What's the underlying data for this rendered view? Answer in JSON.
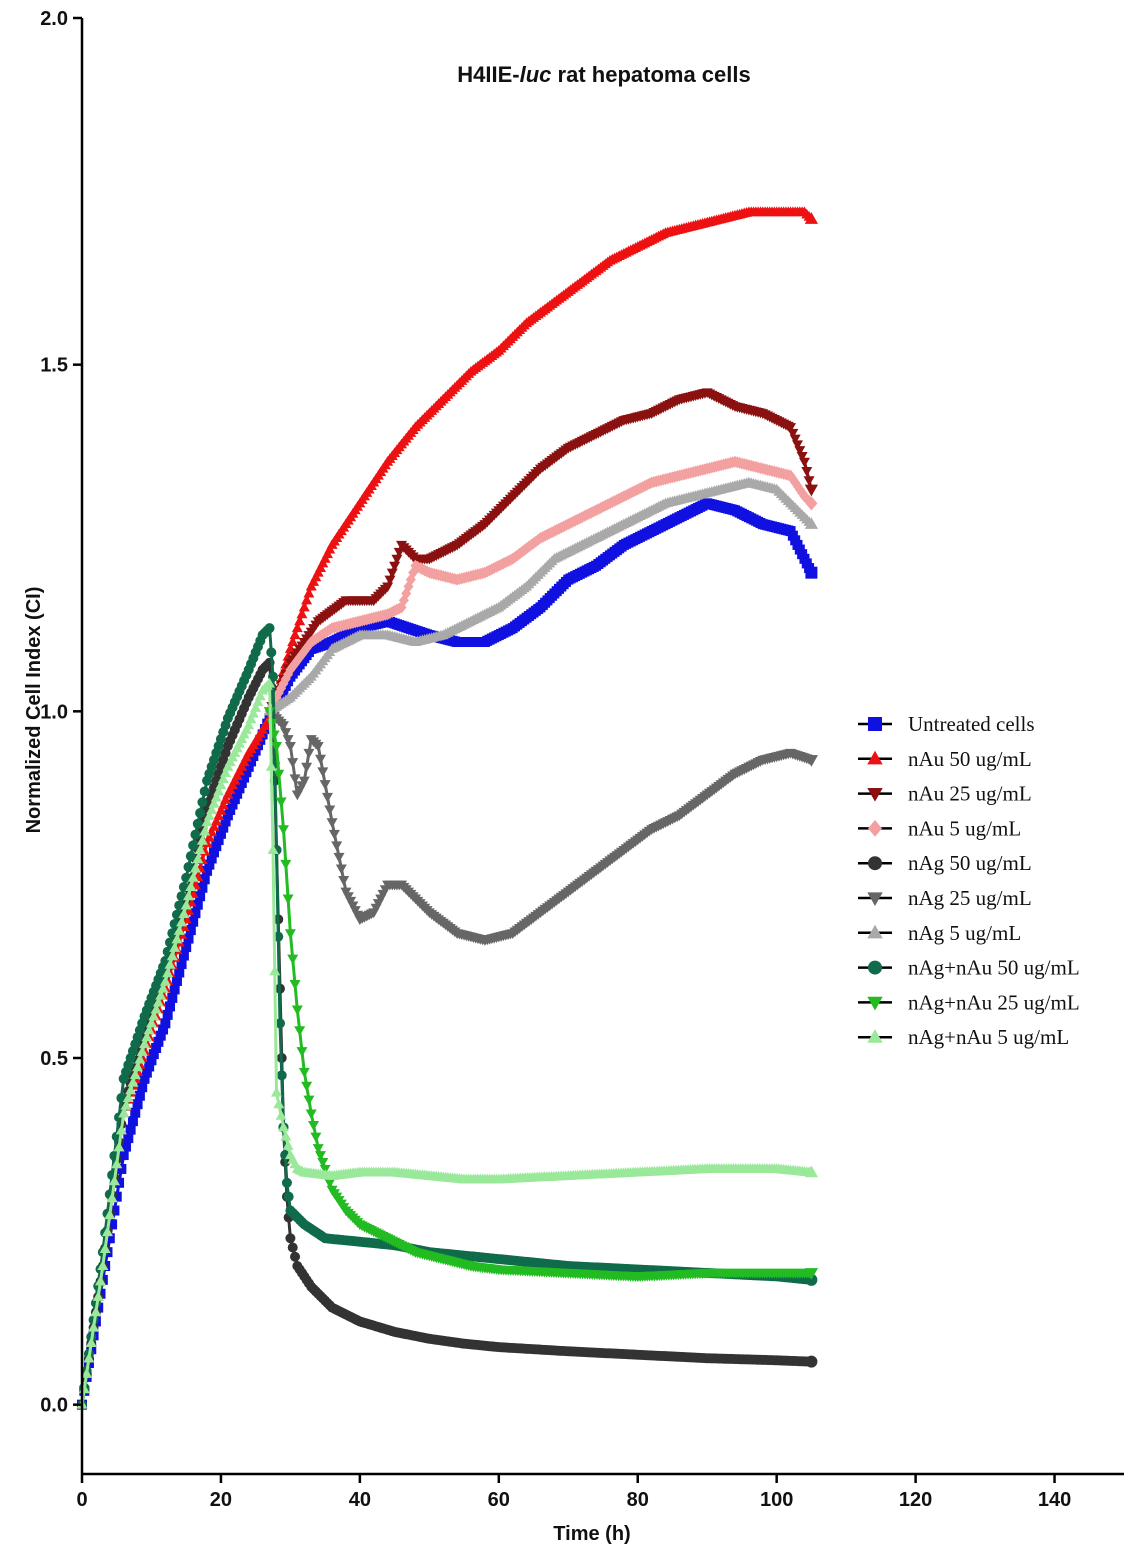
{
  "chart_data": {
    "type": "line",
    "title_main": "H4IIE-",
    "title_italic": "luc",
    "title_rest": " rat hepatoma cells",
    "xlabel": "Time (h)",
    "ylabel": "Normalized Cell Index (CI)",
    "xlim": [
      0,
      150
    ],
    "ylim": [
      -0.1,
      2.0
    ],
    "xticks": [
      "0",
      "20",
      "40",
      "60",
      "80",
      "100",
      "120",
      "140"
    ],
    "yticks": [
      "0.0",
      "0.5",
      "1.0",
      "1.5",
      "2.0"
    ],
    "legend_position": "right",
    "series": [
      {
        "name": "Untreated cells",
        "color": "#1010e0",
        "marker": "square",
        "points": [
          [
            0,
            0
          ],
          [
            3,
            0.18
          ],
          [
            6,
            0.36
          ],
          [
            9,
            0.47
          ],
          [
            12,
            0.55
          ],
          [
            15,
            0.66
          ],
          [
            18,
            0.77
          ],
          [
            21,
            0.85
          ],
          [
            24,
            0.92
          ],
          [
            27,
            0.99
          ],
          [
            30,
            1.05
          ],
          [
            33,
            1.09
          ],
          [
            36,
            1.1
          ],
          [
            40,
            1.12
          ],
          [
            44,
            1.13
          ],
          [
            47,
            1.12
          ],
          [
            50,
            1.11
          ],
          [
            54,
            1.1
          ],
          [
            58,
            1.1
          ],
          [
            62,
            1.12
          ],
          [
            66,
            1.15
          ],
          [
            70,
            1.19
          ],
          [
            74,
            1.21
          ],
          [
            78,
            1.24
          ],
          [
            82,
            1.26
          ],
          [
            86,
            1.28
          ],
          [
            90,
            1.3
          ],
          [
            94,
            1.29
          ],
          [
            98,
            1.27
          ],
          [
            102,
            1.26
          ],
          [
            104,
            1.22
          ],
          [
            105,
            1.2
          ]
        ]
      },
      {
        "name": "nAu 50 ug/mL",
        "color": "#ee1111",
        "marker": "triangle-up",
        "points": [
          [
            0,
            0
          ],
          [
            3,
            0.2
          ],
          [
            6,
            0.42
          ],
          [
            9,
            0.51
          ],
          [
            12,
            0.6
          ],
          [
            15,
            0.7
          ],
          [
            18,
            0.81
          ],
          [
            21,
            0.88
          ],
          [
            24,
            0.94
          ],
          [
            27,
            0.99
          ],
          [
            30,
            1.09
          ],
          [
            33,
            1.18
          ],
          [
            36,
            1.24
          ],
          [
            40,
            1.3
          ],
          [
            44,
            1.36
          ],
          [
            48,
            1.41
          ],
          [
            52,
            1.45
          ],
          [
            56,
            1.49
          ],
          [
            60,
            1.52
          ],
          [
            64,
            1.56
          ],
          [
            68,
            1.59
          ],
          [
            72,
            1.62
          ],
          [
            76,
            1.65
          ],
          [
            80,
            1.67
          ],
          [
            84,
            1.69
          ],
          [
            88,
            1.7
          ],
          [
            92,
            1.71
          ],
          [
            96,
            1.72
          ],
          [
            100,
            1.72
          ],
          [
            104,
            1.72
          ],
          [
            105,
            1.71
          ]
        ]
      },
      {
        "name": "nAu 25 ug/mL",
        "color": "#8b1010",
        "marker": "triangle-down",
        "points": [
          [
            27,
            1.0
          ],
          [
            30,
            1.07
          ],
          [
            34,
            1.13
          ],
          [
            38,
            1.16
          ],
          [
            42,
            1.16
          ],
          [
            44,
            1.18
          ],
          [
            46,
            1.24
          ],
          [
            48,
            1.22
          ],
          [
            50,
            1.22
          ],
          [
            54,
            1.24
          ],
          [
            58,
            1.27
          ],
          [
            62,
            1.31
          ],
          [
            66,
            1.35
          ],
          [
            70,
            1.38
          ],
          [
            74,
            1.4
          ],
          [
            78,
            1.42
          ],
          [
            82,
            1.43
          ],
          [
            86,
            1.45
          ],
          [
            90,
            1.46
          ],
          [
            94,
            1.44
          ],
          [
            98,
            1.43
          ],
          [
            102,
            1.41
          ],
          [
            104,
            1.36
          ],
          [
            105,
            1.32
          ]
        ]
      },
      {
        "name": "nAu 5 ug/mL",
        "color": "#f2a0a0",
        "marker": "diamond",
        "points": [
          [
            27,
            1.0
          ],
          [
            30,
            1.06
          ],
          [
            33,
            1.1
          ],
          [
            36,
            1.12
          ],
          [
            40,
            1.13
          ],
          [
            44,
            1.14
          ],
          [
            46,
            1.15
          ],
          [
            48,
            1.21
          ],
          [
            50,
            1.2
          ],
          [
            54,
            1.19
          ],
          [
            58,
            1.2
          ],
          [
            62,
            1.22
          ],
          [
            66,
            1.25
          ],
          [
            70,
            1.27
          ],
          [
            74,
            1.29
          ],
          [
            78,
            1.31
          ],
          [
            82,
            1.33
          ],
          [
            86,
            1.34
          ],
          [
            90,
            1.35
          ],
          [
            94,
            1.36
          ],
          [
            98,
            1.35
          ],
          [
            102,
            1.34
          ],
          [
            104,
            1.31
          ],
          [
            105,
            1.3
          ]
        ]
      },
      {
        "name": "nAg 50 ug/mL",
        "color": "#333333",
        "marker": "circle",
        "points": [
          [
            0,
            0
          ],
          [
            3,
            0.2
          ],
          [
            6,
            0.43
          ],
          [
            9,
            0.53
          ],
          [
            12,
            0.62
          ],
          [
            15,
            0.73
          ],
          [
            18,
            0.86
          ],
          [
            21,
            0.95
          ],
          [
            24,
            1.02
          ],
          [
            26,
            1.06
          ],
          [
            27,
            1.07
          ],
          [
            27.5,
            1.0
          ],
          [
            28,
            0.8
          ],
          [
            28.5,
            0.6
          ],
          [
            29,
            0.4
          ],
          [
            29.5,
            0.3
          ],
          [
            30,
            0.24
          ],
          [
            31,
            0.2
          ],
          [
            33,
            0.17
          ],
          [
            36,
            0.14
          ],
          [
            40,
            0.12
          ],
          [
            45,
            0.105
          ],
          [
            50,
            0.095
          ],
          [
            55,
            0.088
          ],
          [
            60,
            0.083
          ],
          [
            70,
            0.077
          ],
          [
            80,
            0.072
          ],
          [
            90,
            0.067
          ],
          [
            100,
            0.064
          ],
          [
            105,
            0.062
          ]
        ]
      },
      {
        "name": "nAg 25 ug/mL",
        "color": "#666666",
        "marker": "triangle-down",
        "points": [
          [
            27,
            1.0
          ],
          [
            29,
            0.98
          ],
          [
            30,
            0.95
          ],
          [
            31,
            0.88
          ],
          [
            32,
            0.9
          ],
          [
            33,
            0.96
          ],
          [
            34,
            0.95
          ],
          [
            36,
            0.84
          ],
          [
            38,
            0.74
          ],
          [
            40,
            0.7
          ],
          [
            42,
            0.71
          ],
          [
            44,
            0.75
          ],
          [
            46,
            0.75
          ],
          [
            48,
            0.73
          ],
          [
            50,
            0.71
          ],
          [
            54,
            0.68
          ],
          [
            58,
            0.67
          ],
          [
            62,
            0.68
          ],
          [
            66,
            0.71
          ],
          [
            70,
            0.74
          ],
          [
            74,
            0.77
          ],
          [
            78,
            0.8
          ],
          [
            82,
            0.83
          ],
          [
            86,
            0.85
          ],
          [
            90,
            0.88
          ],
          [
            94,
            0.91
          ],
          [
            98,
            0.93
          ],
          [
            102,
            0.94
          ],
          [
            105,
            0.93
          ]
        ]
      },
      {
        "name": "nAg 5 ug/mL",
        "color": "#a9a9a9",
        "marker": "triangle-up",
        "points": [
          [
            27,
            1.0
          ],
          [
            30,
            1.02
          ],
          [
            33,
            1.05
          ],
          [
            36,
            1.09
          ],
          [
            40,
            1.11
          ],
          [
            44,
            1.11
          ],
          [
            48,
            1.1
          ],
          [
            52,
            1.11
          ],
          [
            56,
            1.13
          ],
          [
            60,
            1.15
          ],
          [
            64,
            1.18
          ],
          [
            68,
            1.22
          ],
          [
            72,
            1.24
          ],
          [
            76,
            1.26
          ],
          [
            80,
            1.28
          ],
          [
            84,
            1.3
          ],
          [
            88,
            1.31
          ],
          [
            92,
            1.32
          ],
          [
            96,
            1.33
          ],
          [
            100,
            1.32
          ],
          [
            104,
            1.28
          ],
          [
            105,
            1.27
          ]
        ]
      },
      {
        "name": "nAg+nAu 50 ug/mL",
        "color": "#0f6b4a",
        "marker": "circle",
        "points": [
          [
            0,
            0
          ],
          [
            3,
            0.22
          ],
          [
            6,
            0.47
          ],
          [
            9,
            0.56
          ],
          [
            12,
            0.64
          ],
          [
            15,
            0.76
          ],
          [
            18,
            0.9
          ],
          [
            21,
            0.99
          ],
          [
            24,
            1.06
          ],
          [
            26,
            1.11
          ],
          [
            27,
            1.12
          ],
          [
            27.5,
            1.05
          ],
          [
            28,
            0.8
          ],
          [
            28.5,
            0.55
          ],
          [
            29,
            0.4
          ],
          [
            29.5,
            0.32
          ],
          [
            30,
            0.28
          ],
          [
            32,
            0.26
          ],
          [
            35,
            0.24
          ],
          [
            40,
            0.235
          ],
          [
            45,
            0.23
          ],
          [
            50,
            0.22
          ],
          [
            60,
            0.21
          ],
          [
            70,
            0.2
          ],
          [
            80,
            0.195
          ],
          [
            90,
            0.19
          ],
          [
            100,
            0.185
          ],
          [
            105,
            0.18
          ]
        ]
      },
      {
        "name": "nAg+nAu 25 ug/mL",
        "color": "#22bb22",
        "marker": "triangle-down",
        "points": [
          [
            27,
            1.0
          ],
          [
            28,
            0.95
          ],
          [
            29,
            0.83
          ],
          [
            30,
            0.68
          ],
          [
            31,
            0.57
          ],
          [
            32,
            0.48
          ],
          [
            33,
            0.42
          ],
          [
            34,
            0.37
          ],
          [
            36,
            0.31
          ],
          [
            38,
            0.28
          ],
          [
            40,
            0.26
          ],
          [
            44,
            0.24
          ],
          [
            48,
            0.22
          ],
          [
            52,
            0.21
          ],
          [
            56,
            0.2
          ],
          [
            60,
            0.195
          ],
          [
            70,
            0.19
          ],
          [
            80,
            0.185
          ],
          [
            90,
            0.19
          ],
          [
            100,
            0.19
          ],
          [
            105,
            0.19
          ]
        ]
      },
      {
        "name": "nAg+nAu 5 ug/mL",
        "color": "#9ae89a",
        "marker": "triangle-up",
        "points": [
          [
            0,
            0
          ],
          [
            3,
            0.2
          ],
          [
            6,
            0.42
          ],
          [
            9,
            0.52
          ],
          [
            12,
            0.61
          ],
          [
            15,
            0.72
          ],
          [
            18,
            0.84
          ],
          [
            21,
            0.92
          ],
          [
            24,
            0.98
          ],
          [
            26,
            1.03
          ],
          [
            27,
            1.04
          ],
          [
            27.5,
            0.8
          ],
          [
            28,
            0.45
          ],
          [
            29,
            0.4
          ],
          [
            30,
            0.36
          ],
          [
            31,
            0.34
          ],
          [
            32,
            0.335
          ],
          [
            36,
            0.33
          ],
          [
            40,
            0.335
          ],
          [
            45,
            0.335
          ],
          [
            50,
            0.33
          ],
          [
            55,
            0.325
          ],
          [
            60,
            0.325
          ],
          [
            70,
            0.33
          ],
          [
            80,
            0.335
          ],
          [
            90,
            0.34
          ],
          [
            100,
            0.34
          ],
          [
            105,
            0.335
          ]
        ]
      }
    ]
  }
}
